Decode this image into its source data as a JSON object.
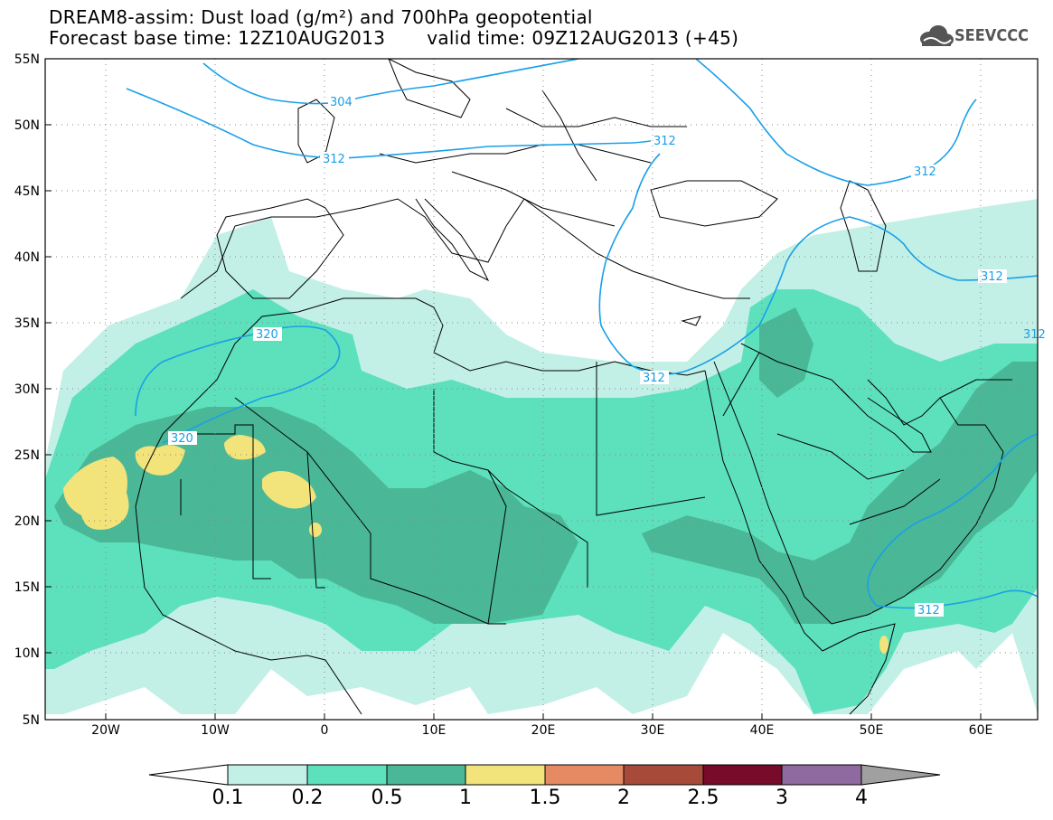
{
  "title": {
    "line1": "DREAM8-assim: Dust load (g/m²) and 700hPa geopotential",
    "line2_left": "Forecast base time: 12Z10AUG2013",
    "line2_right": "valid time: 09Z12AUG2013 (+45)"
  },
  "logo": {
    "text": "SEEVCCC",
    "icon": "cloud-logo-icon"
  },
  "map": {
    "lat_labels": [
      "55N",
      "50N",
      "45N",
      "40N",
      "35N",
      "30N",
      "25N",
      "20N",
      "15N",
      "10N",
      "5N"
    ],
    "lon_labels": [
      "20W",
      "10W",
      "0",
      "10E",
      "20E",
      "30E",
      "40E",
      "50E",
      "60E"
    ],
    "contour_labels": [
      "304",
      "312",
      "312",
      "312",
      "312",
      "320",
      "320",
      "312",
      "312",
      "312"
    ]
  },
  "colorbar": {
    "labels": [
      "0.1",
      "0.2",
      "0.5",
      "1",
      "1.5",
      "2",
      "2.5",
      "3",
      "4"
    ],
    "colors": [
      "#c2f0e6",
      "#5de0bc",
      "#4ab896",
      "#f2e37a",
      "#e58a62",
      "#a84a3a",
      "#780a2a",
      "#8e6aa0",
      "#a0a0a0"
    ]
  }
}
